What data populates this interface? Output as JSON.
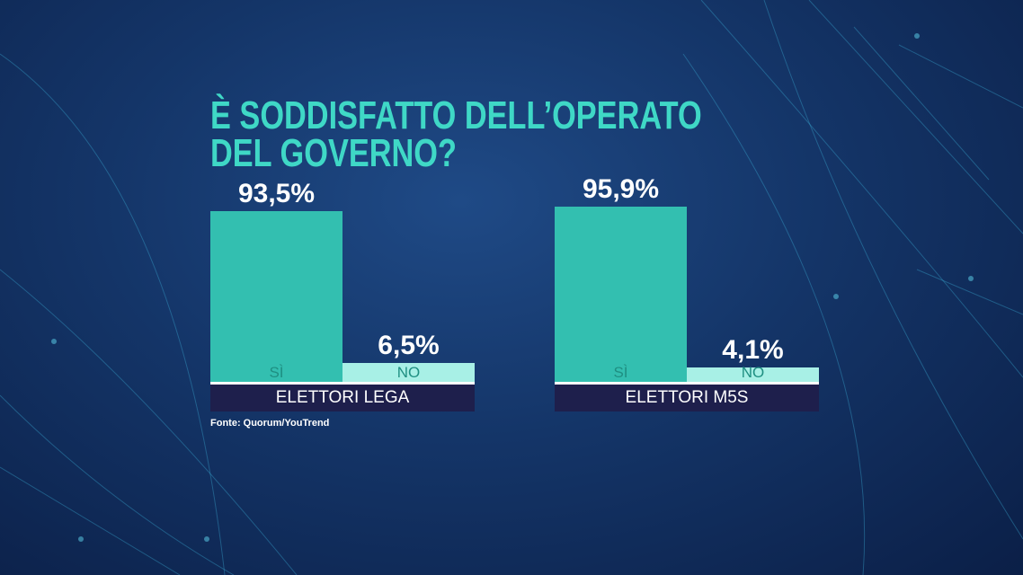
{
  "title_line1": "È SODDISFATTO DELL’OPERATO",
  "title_line2": "DEL GOVERNO?",
  "source": "Fonte: Quorum/YouTrend",
  "colors": {
    "yes": "#33bfb0",
    "no": "#a8f0e6",
    "title": "#3fd8c6",
    "category": "#1e1f4c"
  },
  "chart_data": {
    "type": "bar",
    "title": "È SODDISFATTO DELL’OPERATO DEL GOVERNO?",
    "categories": [
      "SÌ",
      "NO"
    ],
    "groups": [
      {
        "name": "ELETTORI LEGA",
        "values": [
          93.5,
          6.5
        ],
        "labels": [
          "93,5%",
          "6,5%"
        ]
      },
      {
        "name": "ELETTORI M5S",
        "values": [
          95.9,
          4.1
        ],
        "labels": [
          "95,9%",
          "4,1%"
        ]
      }
    ],
    "ylim": [
      0,
      100
    ],
    "unit": "%"
  }
}
